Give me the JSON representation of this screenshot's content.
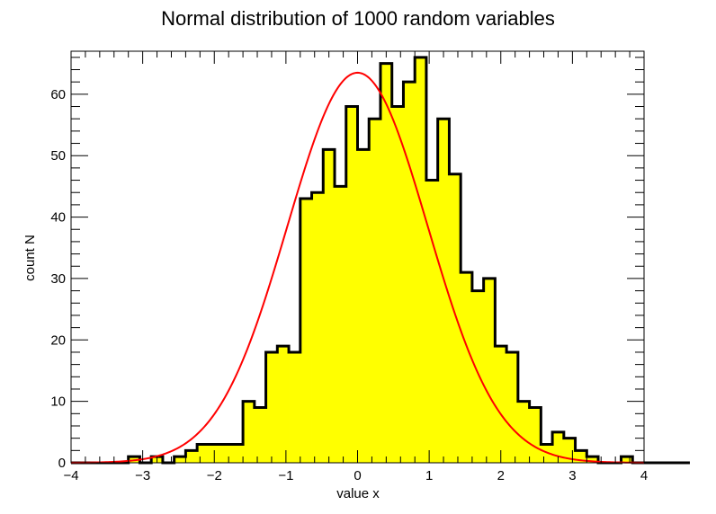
{
  "chart_data": {
    "type": "bar",
    "title": "Normal distribution of 1000 random variables",
    "xlabel": "value x",
    "ylabel": "count N",
    "xlim": [
      -4,
      4
    ],
    "ylim": [
      0,
      67
    ],
    "x_ticks": [
      -4,
      -3,
      -2,
      -1,
      0,
      1,
      2,
      3,
      4
    ],
    "x_tick_labels": [
      "−4",
      "−3",
      "−2",
      "−1",
      "0",
      "1",
      "2",
      "3",
      "4"
    ],
    "y_ticks": [
      0,
      10,
      20,
      30,
      40,
      50,
      60
    ],
    "y_tick_labels": [
      "0",
      "10",
      "20",
      "30",
      "40",
      "50",
      "60"
    ],
    "bin_edges_start": -4,
    "bin_width": 0.16,
    "series": [
      {
        "values": [
          0,
          0,
          0,
          0,
          0,
          1,
          0,
          1,
          0,
          1,
          2,
          3,
          3,
          3,
          3,
          10,
          9,
          18,
          19,
          18,
          43,
          44,
          51,
          45,
          58,
          51,
          56,
          65,
          58,
          62,
          66,
          46,
          56,
          47,
          31,
          28,
          30,
          19,
          18,
          10,
          9,
          3,
          5,
          4,
          2,
          1,
          0,
          0,
          1,
          0,
          0,
          0,
          0,
          0
        ],
        "fill_color": "#ffff00",
        "line_color": "#000000"
      },
      {
        "type": "line",
        "fit": "gaussian",
        "amplitude": 63.5,
        "mean": 0.0,
        "sigma": 0.98,
        "line_color": "#ff0000"
      }
    ],
    "grid": false,
    "legend": "none"
  }
}
